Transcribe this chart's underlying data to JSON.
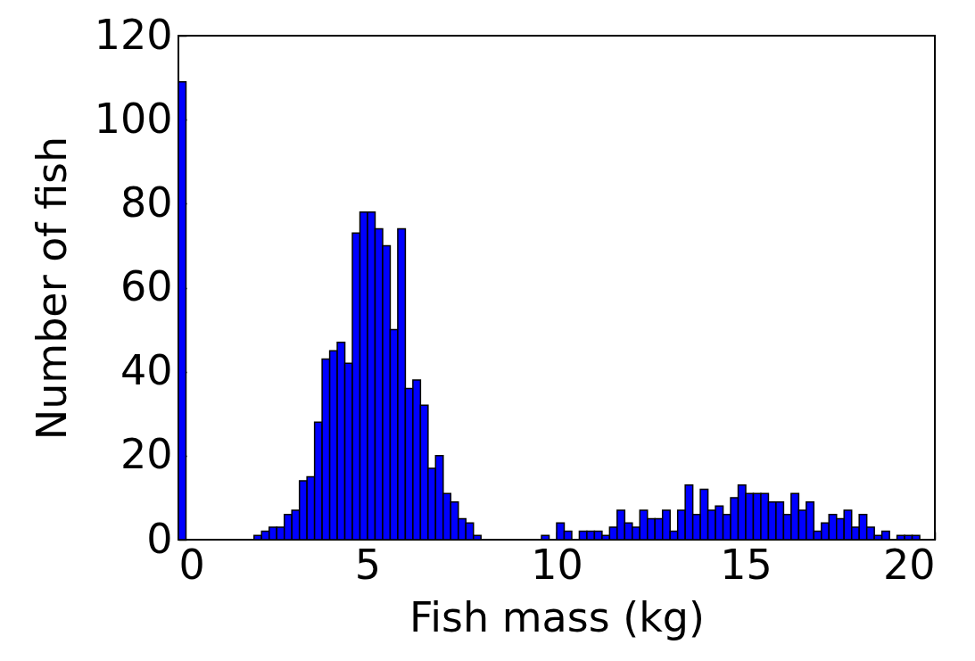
{
  "chart_data": {
    "type": "histogram",
    "xlabel": "Fish mass (kg)",
    "ylabel": "Number of fish",
    "color": "#0000ff",
    "bins": [
      0,
      0.2,
      0.4,
      0.6,
      0.8,
      1,
      1.2,
      1.4,
      1.6,
      1.8,
      2,
      2.2,
      2.4,
      2.6,
      2.8,
      3,
      3.2,
      3.4,
      3.6,
      3.8,
      4,
      4.2,
      4.4,
      4.6,
      4.8,
      5,
      5.2,
      5.4,
      5.6,
      5.8,
      6,
      6.2,
      6.4,
      6.6,
      6.8,
      7,
      7.2,
      7.4,
      7.6,
      7.8,
      8,
      8.2,
      8.4,
      8.6,
      8.8,
      9,
      9.2,
      9.4,
      9.6,
      9.8,
      10,
      10.2,
      10.4,
      10.6,
      10.8,
      11,
      11.2,
      11.4,
      11.6,
      11.8,
      12,
      12.2,
      12.4,
      12.6,
      12.8,
      13,
      13.2,
      13.4,
      13.6,
      13.8,
      14,
      14.2,
      14.4,
      14.6,
      14.8,
      15,
      15.2,
      15.4,
      15.6,
      15.8,
      16,
      16.2,
      16.4,
      16.6,
      16.8,
      17,
      17.2,
      17.4,
      17.6,
      17.8,
      18,
      18.2,
      18.4,
      18.6,
      18.8,
      19,
      19.2,
      19.4,
      19.6,
      19.8,
      20
    ],
    "values": [
      109,
      0,
      0,
      0,
      0,
      0,
      0,
      0,
      0,
      0,
      1,
      2,
      3,
      3,
      6,
      7,
      14,
      15,
      28,
      43,
      45,
      47,
      42,
      73,
      78,
      78,
      74,
      70,
      50,
      74,
      36,
      38,
      32,
      17,
      20,
      11,
      9,
      5,
      4,
      1,
      0,
      0,
      0,
      0,
      0,
      0,
      0,
      0,
      1,
      0,
      4,
      2,
      0,
      2,
      2,
      2,
      1,
      3,
      7,
      4,
      3,
      7,
      5,
      5,
      7,
      2,
      7,
      13,
      6,
      12,
      7,
      8,
      6,
      10,
      13,
      11,
      11,
      11,
      9,
      9,
      6,
      11,
      7,
      9,
      2,
      4,
      6,
      5,
      7,
      3,
      6,
      3,
      1,
      2,
      0,
      1,
      1,
      1,
      0,
      0
    ],
    "xlim": [
      0,
      20
    ],
    "xticks": [
      0,
      5,
      10,
      15,
      20
    ],
    "ylim": [
      0,
      120
    ],
    "yticks": [
      0,
      20,
      40,
      60,
      80,
      100,
      120
    ],
    "grid": false
  }
}
